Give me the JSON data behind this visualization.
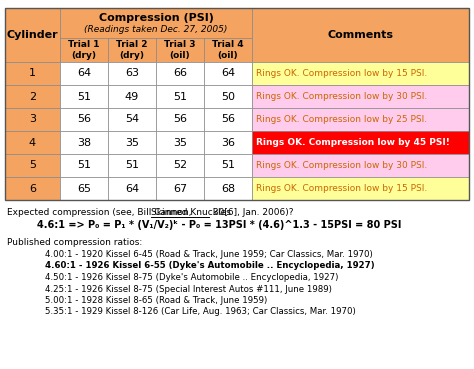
{
  "title_line1": "Compression (PSI)",
  "title_line2": "(Readings taken Dec. 27, 2005)",
  "col_headers": [
    "Cylinder",
    "Trial 1\n(dry)",
    "Trial 2\n(dry)",
    "Trial 3\n(oil)",
    "Trial 4\n(oil)",
    "Comments"
  ],
  "cylinders": [
    1,
    2,
    3,
    4,
    5,
    6
  ],
  "trial1": [
    64,
    51,
    56,
    38,
    51,
    65
  ],
  "trial2": [
    63,
    49,
    54,
    35,
    51,
    64
  ],
  "trial3": [
    66,
    51,
    56,
    35,
    52,
    67
  ],
  "trial4": [
    64,
    50,
    56,
    36,
    51,
    68
  ],
  "comments": [
    "Rings OK. Compression low by 15 PSI.",
    "Rings OK. Compression low by 30 PSI.",
    "Rings OK. Compression low by 25 PSI.",
    "Rings OK. Compression low by 45 PSI!",
    "Rings OK. Compression low by 30 PSI.",
    "Rings OK. Compression low by 15 PSI."
  ],
  "comment_colors": [
    "#ffff99",
    "#ffccee",
    "#ffccee",
    "#ff0000",
    "#ffccee",
    "#ffff99"
  ],
  "comment_text_colors": [
    "#cc6600",
    "#cc6600",
    "#cc6600",
    "#ffffff",
    "#cc6600",
    "#cc6600"
  ],
  "header_bg": "#f4a460",
  "cylinder_bg": "#f4a460",
  "grid_color": "#888888",
  "note_prefix": "Expected compression (see, Bill Cannon, ",
  "note_underline": "Skinned Knuckles",
  "note_suffix": " 30[6], Jan. 2006)?",
  "note_line2": "4.6:1 => P₀ = P₁ * (V₁/V₂)ᵏ - P₀ = 13PSI * (4.6)^1.3 - 15PSI = 80 PSI",
  "published_title": "Published compression ratios:",
  "published_lines": [
    "4.00:1 - 1920 Kissel 6-45 (Road & Track, June 1959; Car Classics, Mar. 1970)",
    "4.60:1 - 1926 Kissel 6-55 (Dyke's Automobile .. Encyclopedia, 1927)",
    "4.50:1 - 1926 Kissel 8-75 (Dyke's Automobile .. Encyclopedia, 1927)",
    "4.25:1 - 1926 Kissel 8-75 (Special Interest Autos #111, June 1989)",
    "5.00:1 - 1928 Kissel 8-65 (Road & Track, June 1959)",
    "5.35:1 - 1929 Kissel 8-126 (Car Life, Aug. 1963; Car Classics, Mar. 1970)"
  ],
  "published_bold": [
    false,
    true,
    false,
    false,
    false,
    false
  ],
  "bg_color": "#ffffff"
}
